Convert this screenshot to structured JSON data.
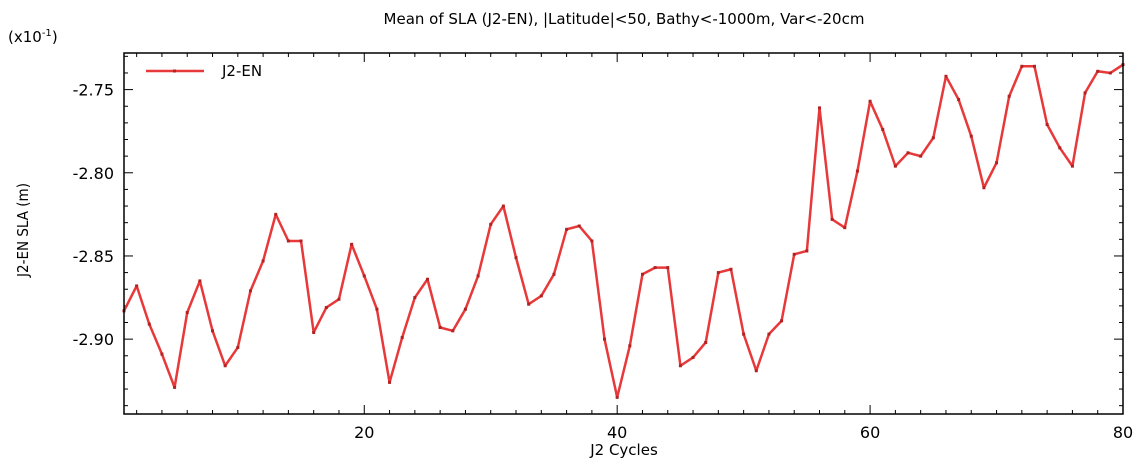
{
  "chart_data": {
    "type": "line",
    "title": "Mean of SLA (J2-EN), |Latitude|<50, Bathy<-1000m, Var<-20cm",
    "multiplier_label": "(x10",
    "multiplier_exponent": "-1",
    "multiplier_close": ")",
    "xlabel": "J2 Cycles",
    "ylabel": "J2-EN SLA (m)",
    "xlim": [
      1,
      80
    ],
    "ylim": [
      -2.945,
      -2.728
    ],
    "xticks": [
      20,
      40,
      60,
      80
    ],
    "xtick_labels": [
      "20",
      "40",
      "60",
      "80"
    ],
    "yticks": [
      -2.75,
      -2.8,
      -2.85,
      -2.9
    ],
    "ytick_labels": [
      "-2.75",
      "-2.80",
      "-2.85",
      "-2.90"
    ],
    "grid": false,
    "legend_position": "top-left",
    "series": [
      {
        "name": "J2-EN",
        "color": "#e8393a",
        "x": [
          1,
          2,
          3,
          4,
          5,
          6,
          7,
          8,
          9,
          10,
          11,
          12,
          13,
          14,
          15,
          16,
          17,
          18,
          19,
          20,
          21,
          22,
          23,
          24,
          25,
          26,
          27,
          28,
          29,
          30,
          31,
          32,
          33,
          34,
          35,
          36,
          37,
          38,
          39,
          40,
          41,
          42,
          43,
          44,
          45,
          46,
          47,
          48,
          49,
          50,
          51,
          52,
          53,
          54,
          55,
          56,
          57,
          58,
          59,
          60,
          61,
          62,
          63,
          64,
          65,
          66,
          67,
          68,
          69,
          70,
          71,
          72,
          73,
          74,
          75,
          76,
          77,
          78,
          79,
          80
        ],
        "y": [
          -2.883,
          -2.868,
          -2.891,
          -2.909,
          -2.929,
          -2.884,
          -2.865,
          -2.895,
          -2.916,
          -2.905,
          -2.871,
          -2.853,
          -2.825,
          -2.841,
          -2.841,
          -2.896,
          -2.881,
          -2.876,
          -2.843,
          -2.862,
          -2.882,
          -2.926,
          -2.899,
          -2.875,
          -2.864,
          -2.893,
          -2.895,
          -2.882,
          -2.862,
          -2.831,
          -2.82,
          -2.851,
          -2.879,
          -2.874,
          -2.861,
          -2.834,
          -2.832,
          -2.841,
          -2.9,
          -2.935,
          -2.904,
          -2.861,
          -2.857,
          -2.857,
          -2.916,
          -2.911,
          -2.902,
          -2.86,
          -2.858,
          -2.897,
          -2.919,
          -2.897,
          -2.889,
          -2.849,
          -2.847,
          -2.761,
          -2.828,
          -2.833,
          -2.799,
          -2.757,
          -2.774,
          -2.796,
          -2.788,
          -2.79,
          -2.779,
          -2.742,
          -2.756,
          -2.778,
          -2.809,
          -2.794,
          -2.754,
          -2.736,
          -2.736,
          -2.771,
          -2.785,
          -2.796,
          -2.752,
          -2.739,
          -2.74,
          -2.735
        ]
      }
    ]
  }
}
